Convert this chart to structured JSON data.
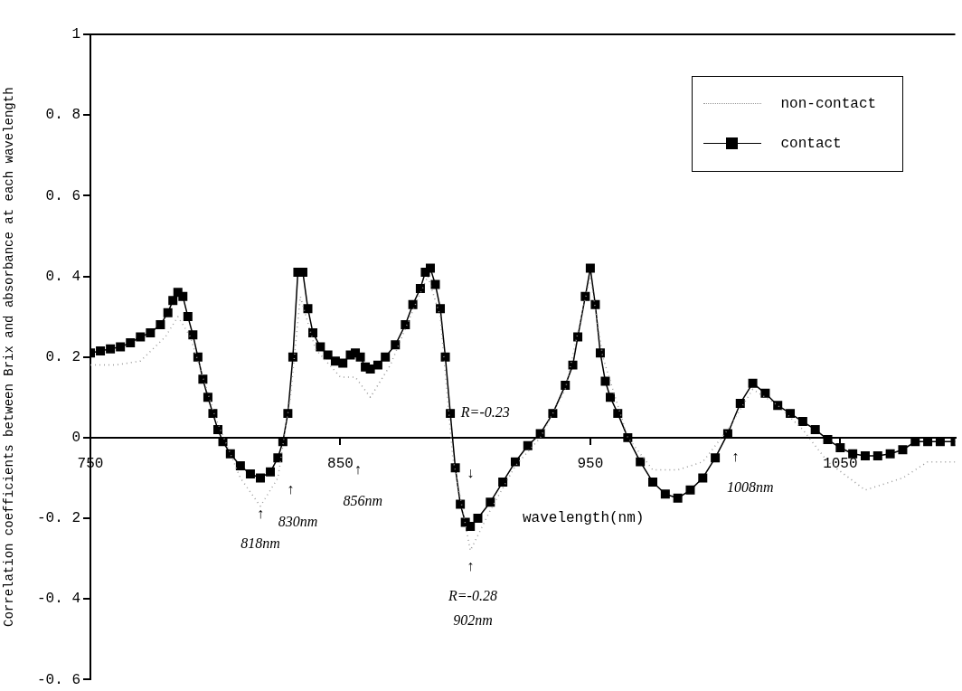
{
  "chart_data": {
    "type": "line",
    "ylabel": "Correlation coefficients between Brix and absorbance at each wavelength",
    "xlabel": "wavelength(nm)",
    "xlim": [
      750,
      1096
    ],
    "xticks": [
      750,
      850,
      950,
      1050
    ],
    "ylim": [
      -0.6,
      1
    ],
    "yticks": [
      {
        "value": -0.6,
        "label": "-0. 6"
      },
      {
        "value": -0.4,
        "label": "-0. 4"
      },
      {
        "value": -0.2,
        "label": "-0. 2"
      },
      0,
      {
        "value": 0.2,
        "label": "0. 2"
      },
      {
        "value": 0.4,
        "label": "0. 4"
      },
      {
        "value": 0.6,
        "label": "0. 6"
      },
      {
        "value": 0.8,
        "label": "0. 8"
      },
      1
    ],
    "grid": false,
    "legend": "top right",
    "series": [
      {
        "name": "non-contact",
        "color": "#999999",
        "line_style": "dotted",
        "marker": "none",
        "x": [
          750,
          760,
          770,
          780,
          785,
          790,
          800,
          810,
          818,
          825,
          830,
          834,
          840,
          850,
          856,
          862,
          870,
          880,
          885,
          890,
          895,
          902,
          910,
          920,
          930,
          940,
          950,
          955,
          965,
          975,
          985,
          995,
          1005,
          1015,
          1025,
          1035,
          1045,
          1060,
          1075,
          1085,
          1096
        ],
        "values": [
          0.18,
          0.18,
          0.19,
          0.25,
          0.3,
          0.25,
          0.05,
          -0.1,
          -0.17,
          -0.1,
          0.1,
          0.35,
          0.22,
          0.15,
          0.15,
          0.1,
          0.18,
          0.33,
          0.4,
          0.3,
          -0.05,
          -0.28,
          -0.18,
          -0.07,
          0,
          0.12,
          0.4,
          0.2,
          0,
          -0.08,
          -0.08,
          -0.06,
          0.02,
          0.12,
          0.08,
          0.02,
          -0.06,
          -0.13,
          -0.1,
          -0.06,
          -0.06
        ]
      },
      {
        "name": "contact",
        "color": "#000000",
        "line_style": "solid",
        "marker": "square",
        "x": [
          750,
          754,
          758,
          762,
          766,
          770,
          774,
          778,
          781,
          783,
          785,
          787,
          789,
          791,
          793,
          795,
          797,
          799,
          801,
          803,
          806,
          810,
          814,
          818,
          822,
          825,
          827,
          829,
          831,
          833,
          835,
          837,
          839,
          842,
          845,
          848,
          851,
          854,
          856,
          858,
          860,
          862,
          865,
          868,
          872,
          876,
          879,
          882,
          884,
          886,
          888,
          890,
          892,
          894,
          896,
          898,
          900,
          902,
          905,
          910,
          915,
          920,
          925,
          930,
          935,
          940,
          943,
          945,
          948,
          950,
          952,
          954,
          956,
          958,
          961,
          965,
          970,
          975,
          980,
          985,
          990,
          995,
          1000,
          1005,
          1010,
          1015,
          1020,
          1025,
          1030,
          1035,
          1040,
          1045,
          1050,
          1055,
          1060,
          1065,
          1070,
          1075,
          1080,
          1085,
          1090,
          1096
        ],
        "values": [
          0.21,
          0.215,
          0.22,
          0.225,
          0.235,
          0.25,
          0.26,
          0.28,
          0.31,
          0.34,
          0.36,
          0.35,
          0.3,
          0.255,
          0.2,
          0.145,
          0.1,
          0.06,
          0.02,
          -0.01,
          -0.04,
          -0.07,
          -0.09,
          -0.1,
          -0.085,
          -0.05,
          -0.01,
          0.06,
          0.2,
          0.41,
          0.41,
          0.32,
          0.26,
          0.225,
          0.205,
          0.19,
          0.185,
          0.205,
          0.21,
          0.2,
          0.175,
          0.17,
          0.18,
          0.2,
          0.23,
          0.28,
          0.33,
          0.37,
          0.41,
          0.42,
          0.38,
          0.32,
          0.2,
          0.06,
          -0.075,
          -0.165,
          -0.21,
          -0.22,
          -0.2,
          -0.16,
          -0.11,
          -0.06,
          -0.02,
          0.01,
          0.06,
          0.13,
          0.18,
          0.25,
          0.35,
          0.42,
          0.33,
          0.21,
          0.14,
          0.1,
          0.06,
          0,
          -0.06,
          -0.11,
          -0.14,
          -0.15,
          -0.13,
          -0.1,
          -0.05,
          0.01,
          0.085,
          0.135,
          0.11,
          0.08,
          0.06,
          0.04,
          0.02,
          -0.005,
          -0.025,
          -0.04,
          -0.045,
          -0.045,
          -0.04,
          -0.03,
          -0.01,
          -0.01,
          -0.01,
          -0.01
        ]
      }
    ],
    "annotations": [
      "↑",
      "818nm",
      "↑",
      "830nm",
      "↑",
      "856nm",
      "R=-0.23",
      "↓",
      "↑",
      "R=-0.28",
      "902nm",
      "↑",
      "1008nm"
    ]
  }
}
